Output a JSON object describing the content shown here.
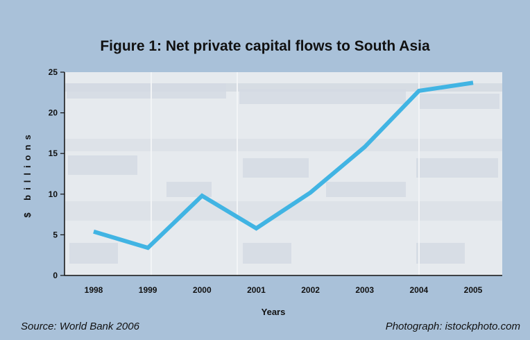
{
  "chart_data": {
    "type": "line",
    "title": "Figure 1: Net private capital flows to South Asia",
    "xlabel": "Years",
    "ylabel": "$ billions",
    "categories": [
      "1998",
      "1999",
      "2000",
      "2001",
      "2002",
      "2003",
      "2004",
      "2005"
    ],
    "series": [
      {
        "values": [
          5.4,
          3.4,
          9.8,
          5.8,
          10.2,
          15.8,
          22.7,
          23.7
        ]
      }
    ],
    "yticks": [
      0,
      5,
      10,
      15,
      20,
      25
    ],
    "ylim": [
      0,
      25
    ],
    "grid": false,
    "line_color": "#41b4e3"
  },
  "source_text": "Source: World Bank 2006",
  "photo_credit": "Photograph: istockphoto.com"
}
